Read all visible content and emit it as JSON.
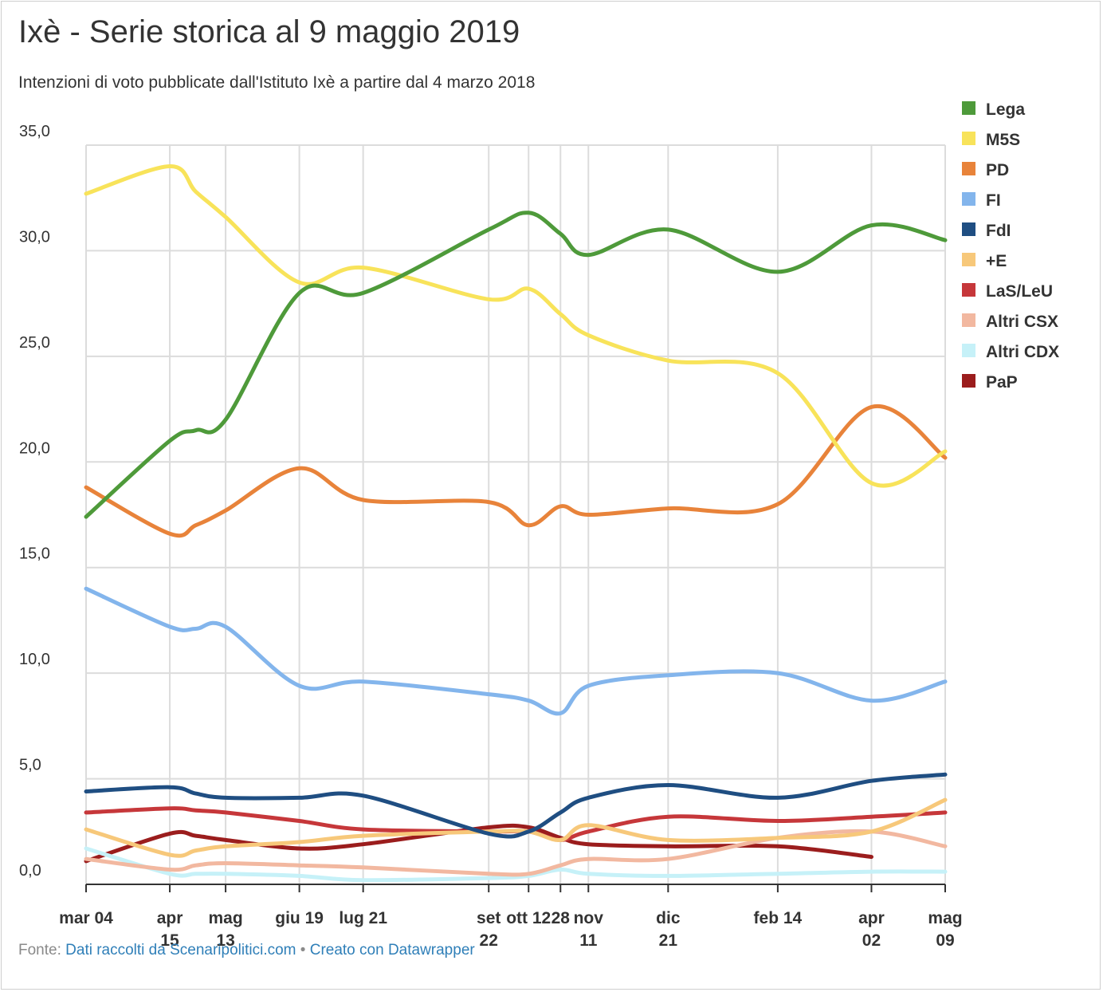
{
  "title": "Ixè - Serie storica al 9 maggio 2019",
  "subtitle": "Intenzioni di voto pubblicate dall'Istituto Ixè a partire dal 4 marzo 2018",
  "footer": {
    "source_label": "Fonte:",
    "source_link": "Dati raccolti da Scenaripolitici.com",
    "separator": "•",
    "credit_link": "Creato con Datawrapper"
  },
  "chart_data": {
    "type": "line",
    "title": "Ixè - Serie storica al 9 maggio 2019",
    "subtitle": "Intenzioni di voto pubblicate dall'Istituto Ixè a partire dal 4 marzo 2018",
    "ylim": [
      0,
      35
    ],
    "yticks": [
      "0,0",
      "5,0",
      "10,0",
      "15,0",
      "20,0",
      "25,0",
      "30,0",
      "35,0"
    ],
    "grid": true,
    "legend_position": "top-right",
    "x_dates": [
      "2018-03-04",
      "2018-04-15",
      "2018-04-28",
      "2018-05-13",
      "2018-06-19",
      "2018-07-21",
      "2018-09-22",
      "2018-10-12",
      "2018-10-28",
      "2018-11-11",
      "2018-12-21",
      "2019-02-14",
      "2019-04-02",
      "2019-05-09"
    ],
    "x_tick_labels": [
      {
        "date": "2018-03-04",
        "line1": "mar 04",
        "line2": ""
      },
      {
        "date": "2018-04-15",
        "line1": "apr",
        "line2": "15"
      },
      {
        "date": "2018-05-13",
        "line1": "mag",
        "line2": "13"
      },
      {
        "date": "2018-06-19",
        "line1": "giu 19",
        "line2": ""
      },
      {
        "date": "2018-07-21",
        "line1": "lug 21",
        "line2": ""
      },
      {
        "date": "2018-09-22",
        "line1": "set",
        "line2": "22"
      },
      {
        "date": "2018-10-12",
        "line1": "ott 12",
        "line2": ""
      },
      {
        "date": "2018-10-28",
        "line1": "28",
        "line2": ""
      },
      {
        "date": "2018-11-11",
        "line1": "nov",
        "line2": "11"
      },
      {
        "date": "2018-12-21",
        "line1": "dic",
        "line2": "21"
      },
      {
        "date": "2019-02-14",
        "line1": "feb 14",
        "line2": ""
      },
      {
        "date": "2019-04-02",
        "line1": "apr",
        "line2": "02"
      },
      {
        "date": "2019-05-09",
        "line1": "mag",
        "line2": "09"
      }
    ],
    "gridline_dates": [
      "2018-03-04",
      "2018-04-15",
      "2018-05-13",
      "2018-06-19",
      "2018-07-21",
      "2018-09-22",
      "2018-10-12",
      "2018-10-28",
      "2018-11-11",
      "2018-12-21",
      "2019-02-14",
      "2019-04-02",
      "2019-05-09"
    ],
    "series": [
      {
        "name": "Lega",
        "color": "#4e9a3a",
        "values": [
          17.4,
          21.0,
          21.5,
          22.0,
          28.0,
          28.0,
          31.0,
          31.8,
          30.8,
          29.8,
          31.0,
          29.0,
          31.2,
          30.5
        ]
      },
      {
        "name": "M5S",
        "color": "#f8e35a",
        "values": [
          32.7,
          34.0,
          32.8,
          31.6,
          28.5,
          29.2,
          27.7,
          28.2,
          27.0,
          26.0,
          24.8,
          24.2,
          19.0,
          20.5
        ]
      },
      {
        "name": "PD",
        "color": "#e8833a",
        "values": [
          18.8,
          16.6,
          17.0,
          17.7,
          19.7,
          18.2,
          18.1,
          17.0,
          17.9,
          17.5,
          17.8,
          18.0,
          22.6,
          20.2
        ]
      },
      {
        "name": "FI",
        "color": "#83b5ec",
        "values": [
          14.0,
          12.2,
          12.1,
          12.2,
          9.4,
          9.6,
          9.0,
          8.7,
          8.1,
          9.4,
          9.9,
          10.0,
          8.7,
          9.6
        ]
      },
      {
        "name": "FdI",
        "color": "#1f4e82",
        "values": [
          4.4,
          4.6,
          4.3,
          4.1,
          4.1,
          4.2,
          2.4,
          2.5,
          3.4,
          4.1,
          4.7,
          4.1,
          4.9,
          5.2
        ]
      },
      {
        "name": "+E",
        "color": "#f7c87a",
        "values": [
          2.6,
          1.4,
          1.6,
          1.8,
          2.0,
          2.3,
          2.5,
          2.5,
          2.1,
          2.8,
          2.1,
          2.2,
          2.5,
          4.0
        ]
      },
      {
        "name": "LaS/LeU",
        "color": "#c6373a",
        "values": [
          3.4,
          3.6,
          3.5,
          3.4,
          3.0,
          2.6,
          2.5,
          2.5,
          2.1,
          2.5,
          3.2,
          3.0,
          3.2,
          3.4
        ]
      },
      {
        "name": "Altri CSX",
        "color": "#f2b8a0",
        "values": [
          1.2,
          0.7,
          0.9,
          1.0,
          0.9,
          0.8,
          0.5,
          0.5,
          0.9,
          1.2,
          1.2,
          2.2,
          2.5,
          1.8
        ]
      },
      {
        "name": "Altri CDX",
        "color": "#c6f1f8",
        "values": [
          1.7,
          0.5,
          0.5,
          0.5,
          0.4,
          0.2,
          0.3,
          0.4,
          0.7,
          0.5,
          0.4,
          0.5,
          0.6,
          0.6
        ]
      },
      {
        "name": "PaP",
        "color": "#9b1d1d",
        "values": [
          1.1,
          2.4,
          2.3,
          2.1,
          1.7,
          1.9,
          2.7,
          2.7,
          2.2,
          1.9,
          1.8,
          1.8,
          1.3,
          null
        ]
      }
    ]
  }
}
